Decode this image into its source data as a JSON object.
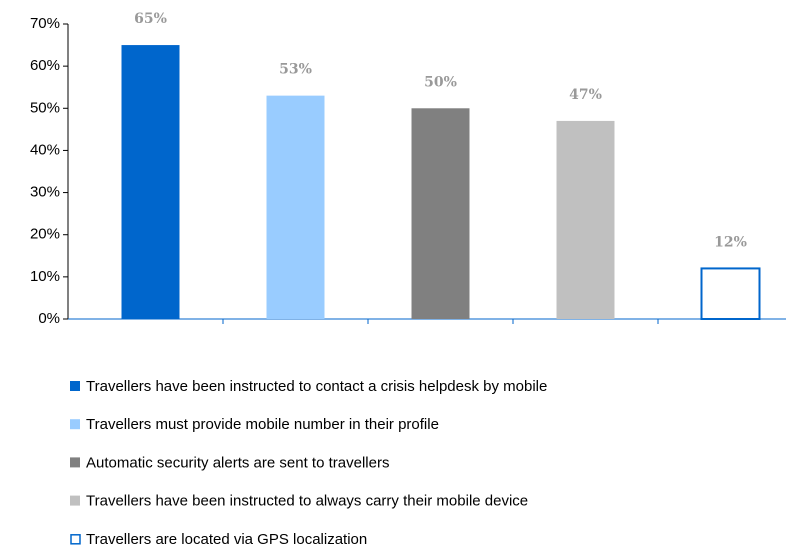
{
  "chart_data": {
    "type": "bar",
    "series": [
      {
        "name": "Travellers have been instructed to contact a crisis helpdesk by mobile",
        "color": "#0066cc",
        "values": [
          65
        ],
        "value_labels": [
          "65%"
        ]
      },
      {
        "name": "Travellers must provide mobile number in their profile",
        "color": "#99ccff",
        "values": [
          53
        ],
        "value_labels": [
          "53%"
        ]
      },
      {
        "name": "Automatic security alerts are sent to travellers",
        "color": "#808080",
        "values": [
          50
        ],
        "value_labels": [
          "50%"
        ]
      },
      {
        "name": "Travellers have been instructed to always carry their mobile device",
        "color": "#c0c0c0",
        "values": [
          47
        ],
        "value_labels": [
          "47%"
        ]
      },
      {
        "name": "Travellers are located via GPS localization",
        "color": "#ffffff",
        "edgecolor": "#0066cc",
        "values": [
          12
        ],
        "value_labels": [
          "12%"
        ]
      }
    ],
    "ylim": [
      0,
      70
    ],
    "yticks": [
      {
        "value": 0,
        "label": "0%"
      },
      {
        "value": 10,
        "label": "10%"
      },
      {
        "value": 20,
        "label": "20%"
      },
      {
        "value": 30,
        "label": "30%"
      },
      {
        "value": 40,
        "label": "40%"
      },
      {
        "value": 50,
        "label": "50%"
      },
      {
        "value": 60,
        "label": "60%"
      },
      {
        "value": 70,
        "label": "70%"
      }
    ],
    "grid": false,
    "legend": "bottom"
  }
}
